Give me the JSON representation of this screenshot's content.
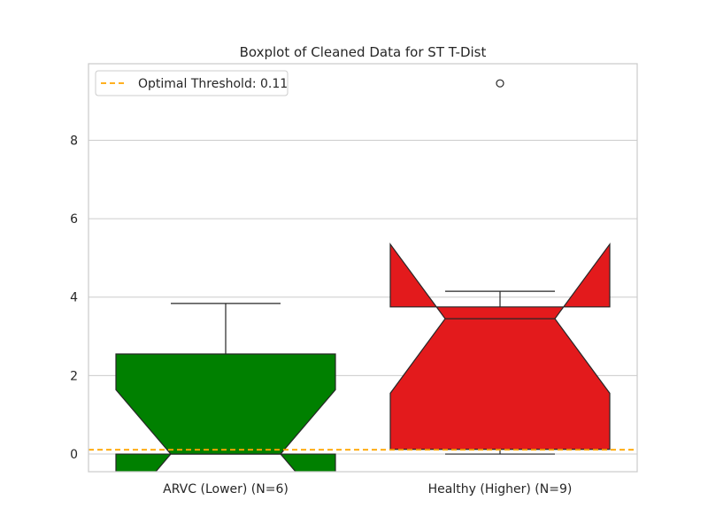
{
  "chart_data": {
    "type": "boxplot",
    "title": "Boxplot of Cleaned Data for ST T-Dist",
    "xlabel": "",
    "ylabel": "",
    "categories": [
      "ARVC (Lower) (N=6)",
      "Healthy (Higher) (N=9)"
    ],
    "ylim": [
      -0.45,
      9.95
    ],
    "yticks": [
      0,
      2,
      4,
      6,
      8
    ],
    "notched": true,
    "grid": "horizontal",
    "boxes": [
      {
        "category": "ARVC (Lower) (N=6)",
        "color": "#008000",
        "q1": 0.0,
        "median": 0.0,
        "q3": 2.55,
        "whisker_low": 0.0,
        "whisker_high": 3.84,
        "notch_low": -1.64,
        "notch_high": 1.64,
        "outliers": []
      },
      {
        "category": "Healthy (Higher) (N=9)",
        "color": "#e31a1c",
        "q1": 0.12,
        "median": 3.45,
        "q3": 3.75,
        "whisker_low": 0.0,
        "whisker_high": 4.15,
        "notch_low": 1.55,
        "notch_high": 5.35,
        "outliers": [
          9.45
        ]
      }
    ],
    "threshold": {
      "label": "Optimal Threshold: 0.11",
      "value": 0.11,
      "color": "#ffa500",
      "style": "dashed"
    },
    "legend": {
      "position": "top-left"
    }
  }
}
